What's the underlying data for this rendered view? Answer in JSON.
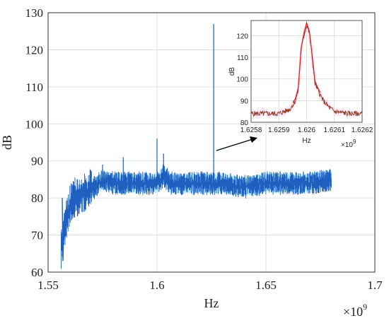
{
  "colors": {
    "main_series": "#1f5fbf",
    "inset_series": "#8b3a1e",
    "inset_peak": "#e02020",
    "grid": "#d9d9d9",
    "arrow": "#000000"
  },
  "chart_data": [
    {
      "type": "line",
      "xlabel": "Hz",
      "ylabel": "dB",
      "x_exponent_label": "×10",
      "x_exponent": "9",
      "xlim": [
        1.55,
        1.7
      ],
      "ylim": [
        60,
        130
      ],
      "x_ticks": [
        "1.55",
        "1.6",
        "1.65",
        "1.7"
      ],
      "y_ticks": [
        "60",
        "70",
        "80",
        "90",
        "100",
        "110",
        "120",
        "130"
      ],
      "grid": true,
      "series": [
        {
          "x": [
            1.556,
            1.557,
            1.558,
            1.559,
            1.56,
            1.562,
            1.565,
            1.568,
            1.572,
            1.575,
            1.58,
            1.585,
            1.59,
            1.595,
            1.6,
            1.603,
            1.606,
            1.61,
            1.62,
            1.626,
            1.63,
            1.64,
            1.65,
            1.66,
            1.67,
            1.68
          ],
          "y": [
            66,
            70,
            73,
            76,
            78,
            80,
            81,
            82,
            83,
            85,
            84,
            84,
            84,
            84,
            84,
            86,
            84,
            84,
            84,
            84,
            84,
            83,
            84,
            84,
            84,
            85
          ]
        }
      ],
      "spikes": [
        {
          "x": 1.575,
          "y": 89
        },
        {
          "x": 1.5845,
          "y": 91
        },
        {
          "x": 1.6,
          "y": 96
        },
        {
          "x": 1.603,
          "y": 92
        },
        {
          "x": 1.626,
          "y": 127
        }
      ]
    },
    {
      "type": "line",
      "xlabel": "Hz",
      "ylabel": "dB",
      "x_exponent_label": "×10",
      "x_exponent": "9",
      "xlim": [
        1.6258,
        1.6262
      ],
      "ylim": [
        80,
        127
      ],
      "x_ticks": [
        "1.6258",
        "1.6259",
        "1.626",
        "1.6261",
        "1.6262"
      ],
      "y_ticks": [
        "80",
        "90",
        "100",
        "110",
        "120"
      ],
      "grid": true,
      "series": [
        {
          "x": [
            1.6258,
            1.62585,
            1.6259,
            1.62592,
            1.62594,
            1.62596,
            1.62597,
            1.62598,
            1.62599,
            1.626,
            1.62601,
            1.62602,
            1.62603,
            1.62604,
            1.62606,
            1.62608,
            1.6261,
            1.62615,
            1.6262
          ],
          "y": [
            84,
            84,
            84,
            85,
            86,
            90,
            95,
            113,
            120,
            125,
            121,
            110,
            98,
            95,
            90,
            87,
            85,
            84,
            84
          ]
        }
      ]
    }
  ]
}
